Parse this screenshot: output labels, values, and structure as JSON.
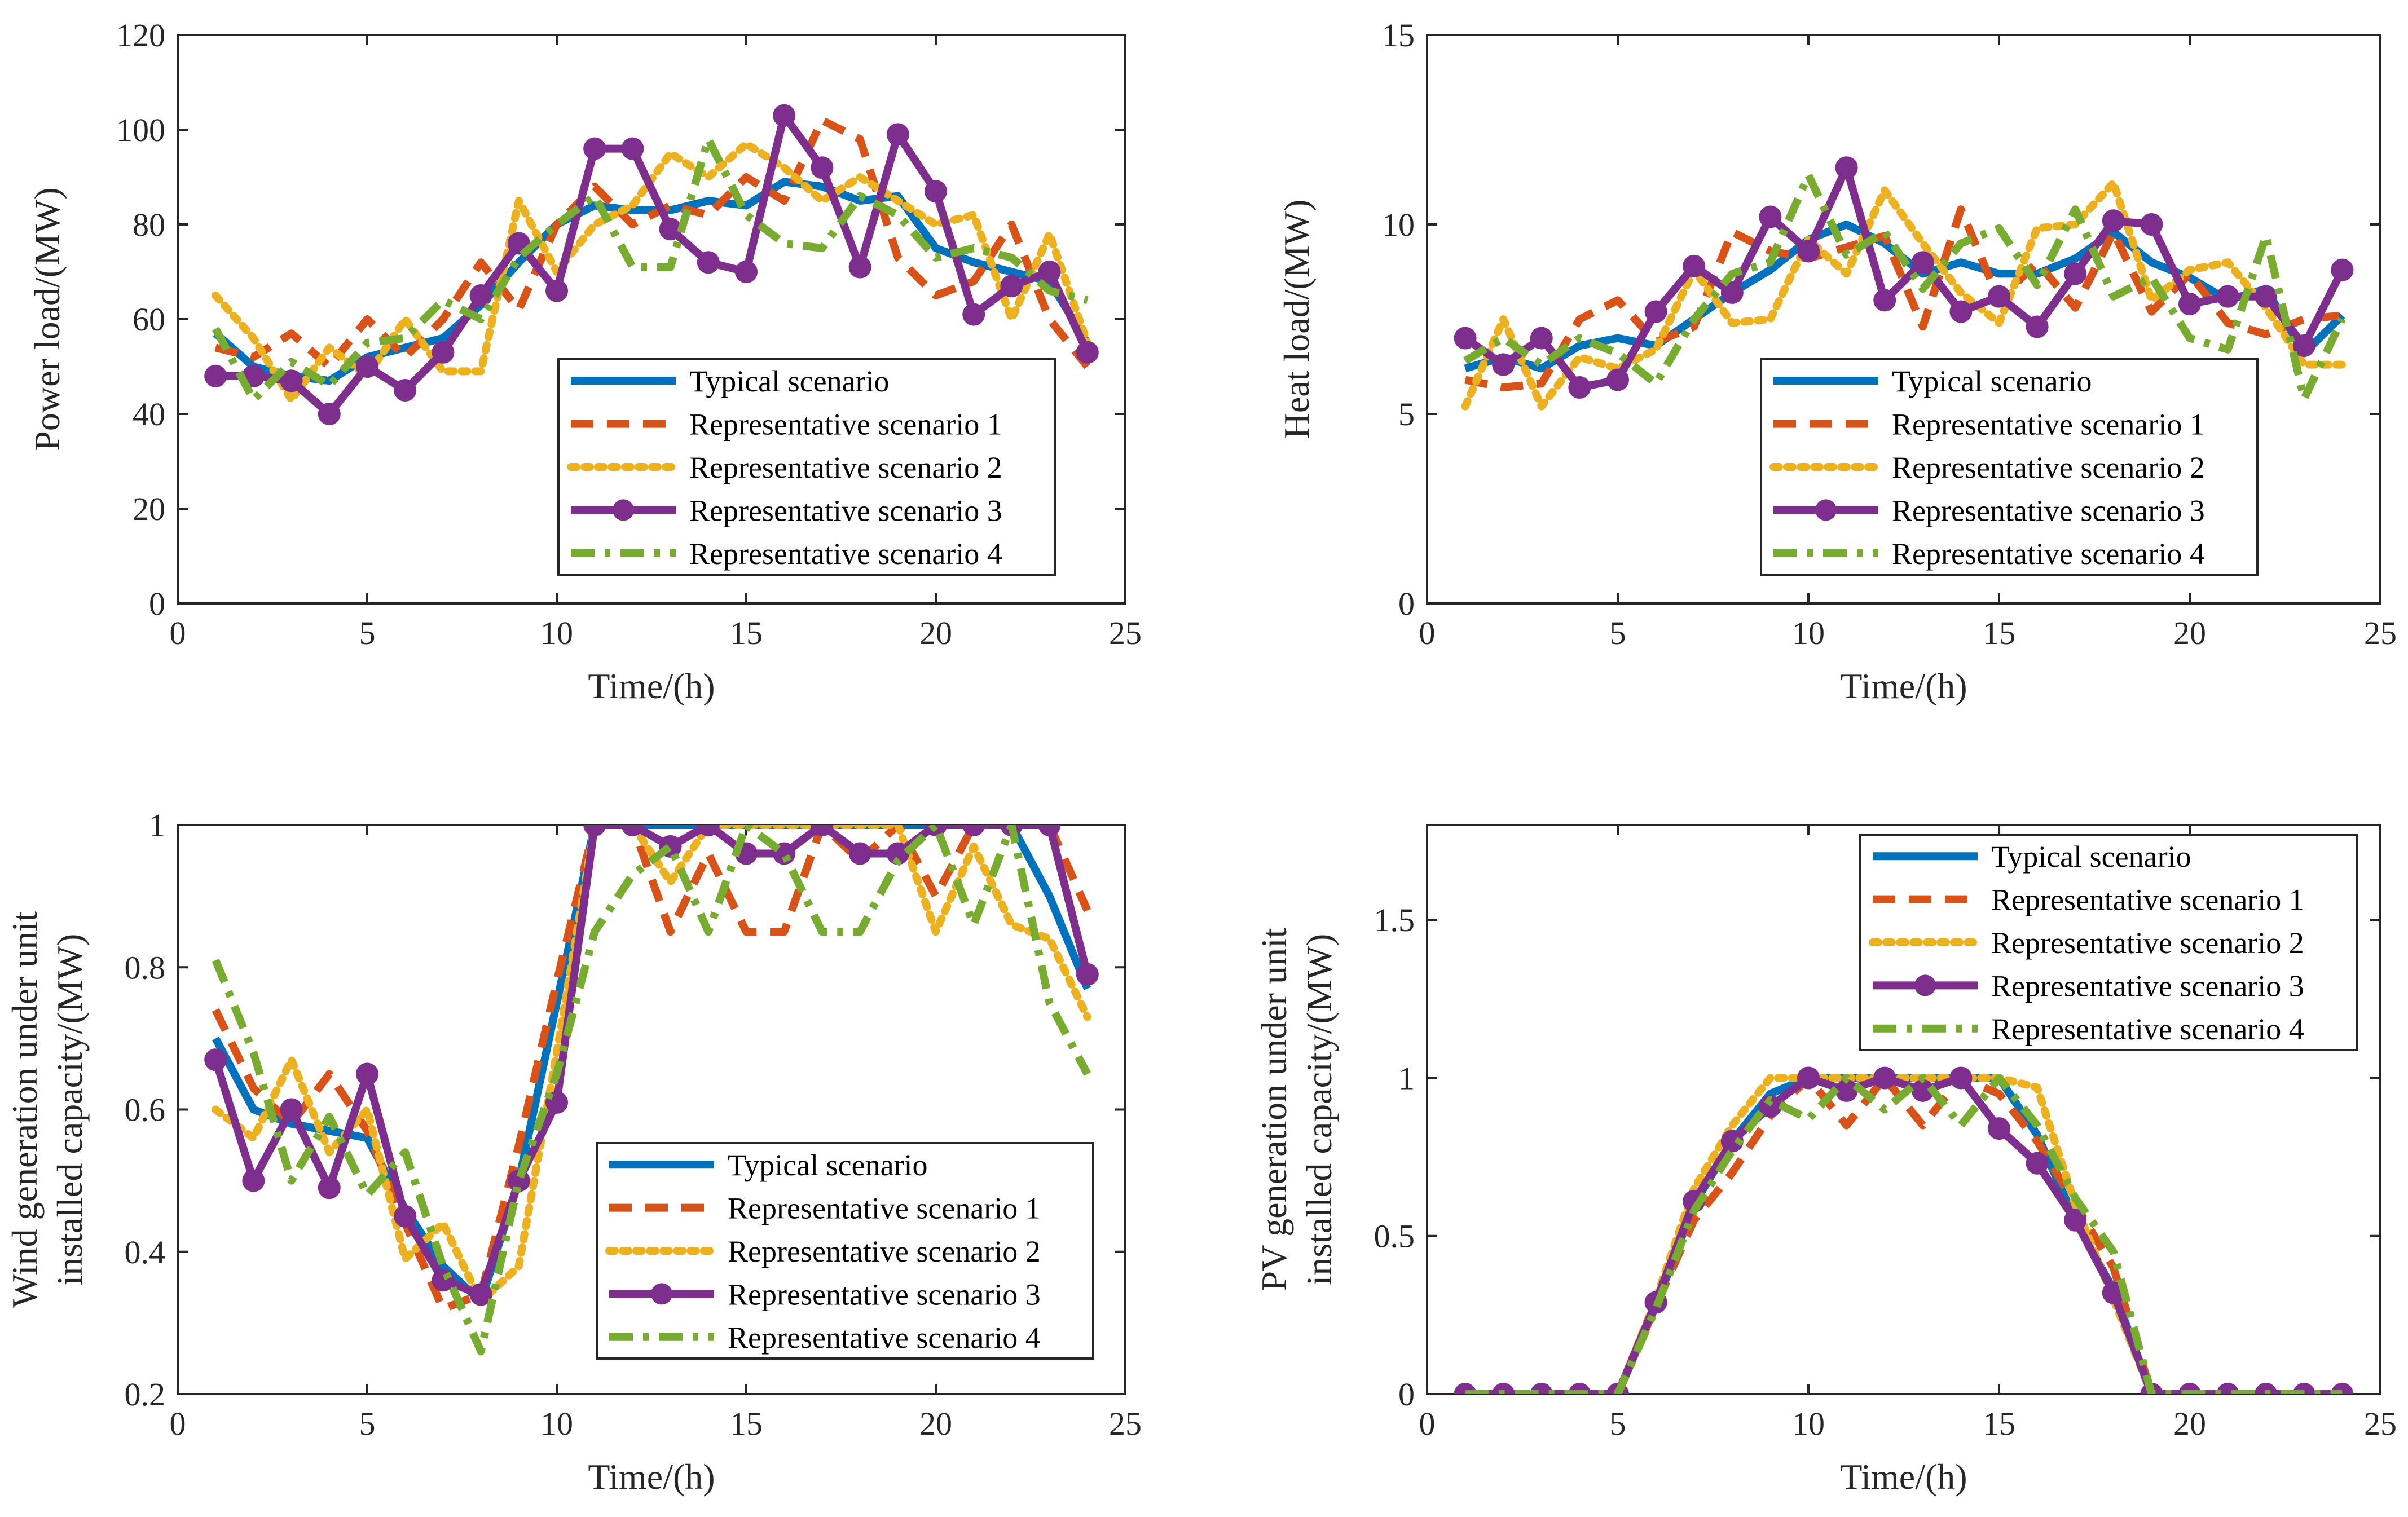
{
  "colors": {
    "typical": "#0072BD",
    "rep1": "#D95319",
    "rep2": "#EDB120",
    "rep3": "#7E2F8E",
    "rep4": "#77AC30"
  },
  "chart_data": [
    {
      "id": "power",
      "type": "line",
      "xlabel": "Time/(h)",
      "ylabel": [
        "Power load/(MW)"
      ],
      "xlim": [
        0,
        25
      ],
      "ylim": [
        0,
        120
      ],
      "xticks": [
        0,
        5,
        10,
        15,
        20,
        25
      ],
      "yticks": [
        0,
        20,
        40,
        60,
        80,
        100,
        120
      ],
      "ytick_labels": [
        "0",
        "20",
        "40",
        "60",
        "80",
        "100",
        "120"
      ],
      "legend_position": "lower-right",
      "x": [
        1,
        2,
        3,
        4,
        5,
        6,
        7,
        8,
        9,
        10,
        11,
        12,
        13,
        14,
        15,
        16,
        17,
        18,
        19,
        20,
        21,
        22,
        23,
        24
      ],
      "series": [
        {
          "name": "Typical scenario",
          "style": "solid",
          "color_key": "typical",
          "values": [
            57,
            50,
            48,
            47,
            52,
            54,
            56,
            63,
            72,
            80,
            84,
            83,
            83,
            85,
            84,
            89,
            88,
            85,
            86,
            75,
            72,
            70,
            68,
            55
          ]
        },
        {
          "name": "Representative scenario 1",
          "style": "dash",
          "color_key": "rep1",
          "values": [
            54,
            52,
            57,
            50,
            60,
            52,
            60,
            72,
            62,
            80,
            88,
            80,
            84,
            82,
            90,
            85,
            102,
            98,
            73,
            65,
            68,
            80,
            60,
            50
          ]
        },
        {
          "name": "Representative scenario 2",
          "style": "dot",
          "color_key": "rep2",
          "values": [
            65,
            56,
            43,
            54,
            48,
            60,
            49,
            49,
            85,
            70,
            80,
            84,
            95,
            90,
            97,
            92,
            85,
            90,
            85,
            80,
            82,
            60,
            78,
            55
          ]
        },
        {
          "name": "Representative scenario 3",
          "style": "marker",
          "color_key": "rep3",
          "values": [
            48,
            48,
            47,
            40,
            50,
            45,
            53,
            65,
            76,
            66,
            96,
            96,
            79,
            72,
            70,
            103,
            92,
            71,
            99,
            87,
            61,
            67,
            70,
            53
          ]
        },
        {
          "name": "Representative scenario 4",
          "style": "dashdot",
          "color_key": "rep4",
          "values": [
            58,
            43,
            51,
            46,
            55,
            56,
            64,
            60,
            73,
            80,
            86,
            71,
            71,
            98,
            82,
            76,
            75,
            86,
            82,
            73,
            75,
            73,
            66,
            64
          ]
        }
      ]
    },
    {
      "id": "heat",
      "type": "line",
      "xlabel": "Time/(h)",
      "ylabel": [
        "Heat load/(MW)"
      ],
      "xlim": [
        0,
        25
      ],
      "ylim": [
        0,
        15
      ],
      "xticks": [
        0,
        5,
        10,
        15,
        20,
        25
      ],
      "yticks": [
        0,
        5,
        10,
        15
      ],
      "ytick_labels": [
        "0",
        "5",
        "10",
        "15"
      ],
      "legend_position": "lower-right",
      "x": [
        1,
        2,
        3,
        4,
        5,
        6,
        7,
        8,
        9,
        10,
        11,
        12,
        13,
        14,
        15,
        16,
        17,
        18,
        19,
        20,
        21,
        22,
        23,
        24
      ],
      "series": [
        {
          "name": "Typical scenario",
          "style": "solid",
          "color_key": "typical",
          "values": [
            6.2,
            6.5,
            6.2,
            6.8,
            7.0,
            6.8,
            7.5,
            8.2,
            8.8,
            9.6,
            10.0,
            9.5,
            8.7,
            9.0,
            8.7,
            8.7,
            9.1,
            9.8,
            9.0,
            8.6,
            8.0,
            8.3,
            6.6,
            7.6
          ]
        },
        {
          "name": "Representative scenario 1",
          "style": "dash",
          "color_key": "rep1",
          "values": [
            5.9,
            5.7,
            5.8,
            7.5,
            8.0,
            6.9,
            7.3,
            9.8,
            9.3,
            9.1,
            9.4,
            9.7,
            7.3,
            10.4,
            8.0,
            9.0,
            7.8,
            9.8,
            7.7,
            8.7,
            7.4,
            7.1,
            7.5,
            7.6
          ]
        },
        {
          "name": "Representative scenario 2",
          "style": "dot",
          "color_key": "rep2",
          "values": [
            5.2,
            7.5,
            5.2,
            6.5,
            6.2,
            6.7,
            8.8,
            7.4,
            7.5,
            9.6,
            8.7,
            10.9,
            9.5,
            8.2,
            7.4,
            9.9,
            10.0,
            11.1,
            8.0,
            8.8,
            9.0,
            7.8,
            6.3,
            6.3
          ]
        },
        {
          "name": "Representative scenario 3",
          "style": "marker",
          "color_key": "rep3",
          "values": [
            7.0,
            6.3,
            7.0,
            5.7,
            5.9,
            7.7,
            8.9,
            8.2,
            10.2,
            9.3,
            11.5,
            8.0,
            9.0,
            7.7,
            8.1,
            7.3,
            8.7,
            10.1,
            10.0,
            7.9,
            8.1,
            8.1,
            6.8,
            8.8
          ]
        },
        {
          "name": "Representative scenario 4",
          "style": "dashdot",
          "color_key": "rep4",
          "values": [
            6.4,
            7.0,
            6.3,
            7.0,
            6.6,
            5.8,
            7.5,
            8.7,
            9.0,
            11.3,
            9.2,
            9.8,
            8.3,
            9.5,
            9.9,
            8.4,
            10.4,
            8.1,
            8.6,
            7.0,
            6.7,
            9.7,
            5.4,
            7.5
          ]
        }
      ]
    },
    {
      "id": "wind",
      "type": "line",
      "xlabel": "Time/(h)",
      "ylabel": [
        "Wind generation under unit",
        "installed capacity/(MW)"
      ],
      "xlim": [
        0,
        25
      ],
      "ylim": [
        0.2,
        1
      ],
      "xticks": [
        0,
        5,
        10,
        15,
        20,
        25
      ],
      "yticks": [
        0.2,
        0.4,
        0.6,
        0.8,
        1
      ],
      "ytick_labels": [
        "0.2",
        "0.4",
        "0.6",
        "0.8",
        "1"
      ],
      "legend_position": "lower-right",
      "x": [
        1,
        2,
        3,
        4,
        5,
        6,
        7,
        8,
        9,
        10,
        11,
        12,
        13,
        14,
        15,
        16,
        17,
        18,
        19,
        20,
        21,
        22,
        23,
        24
      ],
      "series": [
        {
          "name": "Typical scenario",
          "style": "solid",
          "color_key": "typical",
          "values": [
            0.7,
            0.6,
            0.58,
            0.57,
            0.56,
            0.46,
            0.38,
            0.33,
            0.5,
            0.75,
            1.0,
            1.0,
            1.0,
            1.0,
            1.0,
            1.0,
            1.0,
            1.0,
            1.0,
            1.0,
            1.0,
            1.0,
            0.9,
            0.77
          ]
        },
        {
          "name": "Representative scenario 1",
          "style": "dash",
          "color_key": "rep1",
          "values": [
            0.74,
            0.63,
            0.58,
            0.65,
            0.57,
            0.44,
            0.32,
            0.34,
            0.55,
            0.78,
            1.0,
            1.0,
            0.85,
            0.96,
            0.85,
            0.85,
            1.0,
            0.95,
            1.0,
            0.9,
            1.0,
            1.0,
            1.0,
            0.88
          ]
        },
        {
          "name": "Representative scenario 2",
          "style": "dot",
          "color_key": "rep2",
          "values": [
            0.6,
            0.56,
            0.67,
            0.54,
            0.6,
            0.39,
            0.44,
            0.33,
            0.38,
            0.68,
            1.0,
            1.0,
            0.92,
            1.0,
            1.0,
            1.0,
            1.0,
            1.0,
            1.0,
            0.85,
            0.97,
            0.86,
            0.84,
            0.73
          ]
        },
        {
          "name": "Representative scenario 3",
          "style": "marker",
          "color_key": "rep3",
          "values": [
            0.67,
            0.5,
            0.6,
            0.49,
            0.65,
            0.45,
            0.36,
            0.34,
            0.5,
            0.61,
            1.0,
            1.0,
            0.97,
            1.0,
            0.96,
            0.96,
            1.0,
            0.96,
            0.96,
            1.0,
            1.0,
            1.0,
            1.0,
            0.79
          ]
        },
        {
          "name": "Representative scenario 4",
          "style": "dashdot",
          "color_key": "rep4",
          "values": [
            0.81,
            0.68,
            0.5,
            0.59,
            0.48,
            0.54,
            0.38,
            0.26,
            0.5,
            0.65,
            0.85,
            0.93,
            0.97,
            0.85,
            1.0,
            0.96,
            0.85,
            0.85,
            0.95,
            1.0,
            0.86,
            1.0,
            0.75,
            0.65
          ]
        }
      ]
    },
    {
      "id": "pv",
      "type": "line",
      "xlabel": "Time/(h)",
      "ylabel": [
        "PV generation under unit",
        "installed capacity/(MW)"
      ],
      "xlim": [
        0,
        25
      ],
      "ylim": [
        0,
        1.8
      ],
      "xticks": [
        0,
        5,
        10,
        15,
        20,
        25
      ],
      "yticks": [
        0,
        0.5,
        1,
        1.5
      ],
      "ytick_labels": [
        "0",
        "0.5",
        "1",
        "1.5"
      ],
      "legend_position": "top-right",
      "x": [
        1,
        2,
        3,
        4,
        5,
        6,
        7,
        8,
        9,
        10,
        11,
        12,
        13,
        14,
        15,
        16,
        17,
        18,
        19,
        20,
        21,
        22,
        23,
        24
      ],
      "series": [
        {
          "name": "Typical scenario",
          "style": "solid",
          "color_key": "typical",
          "values": [
            0,
            0,
            0,
            0,
            0,
            0.28,
            0.6,
            0.8,
            0.95,
            1.0,
            1.0,
            1.0,
            1.0,
            1.0,
            1.0,
            0.82,
            0.55,
            0.33,
            0,
            0,
            0,
            0,
            0,
            0
          ]
        },
        {
          "name": "Representative scenario 1",
          "style": "dash",
          "color_key": "rep1",
          "values": [
            0,
            0,
            0,
            0,
            0,
            0.28,
            0.55,
            0.7,
            0.88,
            1.0,
            0.85,
            1.0,
            0.85,
            1.0,
            0.95,
            0.8,
            0.6,
            0.4,
            0,
            0,
            0,
            0,
            0,
            0
          ]
        },
        {
          "name": "Representative scenario 2",
          "style": "dot",
          "color_key": "rep2",
          "values": [
            0,
            0,
            0,
            0,
            0,
            0.3,
            0.65,
            0.85,
            1.0,
            1.0,
            1.0,
            1.0,
            1.0,
            1.0,
            1.0,
            0.97,
            0.6,
            0.3,
            0,
            0,
            0,
            0,
            0,
            0
          ]
        },
        {
          "name": "Representative scenario 3",
          "style": "marker",
          "color_key": "rep3",
          "values": [
            0,
            0,
            0,
            0,
            0,
            0.29,
            0.61,
            0.8,
            0.91,
            1.0,
            0.96,
            1.0,
            0.96,
            1.0,
            0.84,
            0.73,
            0.55,
            0.32,
            0,
            0,
            0,
            0,
            0,
            0
          ]
        },
        {
          "name": "Representative scenario 4",
          "style": "dashdot",
          "color_key": "rep4",
          "values": [
            0,
            0,
            0,
            0,
            0,
            0.27,
            0.58,
            0.77,
            0.93,
            0.87,
            1.0,
            0.9,
            1.0,
            0.85,
            1.0,
            0.85,
            0.62,
            0.45,
            0,
            0,
            0,
            0,
            0,
            0
          ]
        }
      ]
    }
  ]
}
